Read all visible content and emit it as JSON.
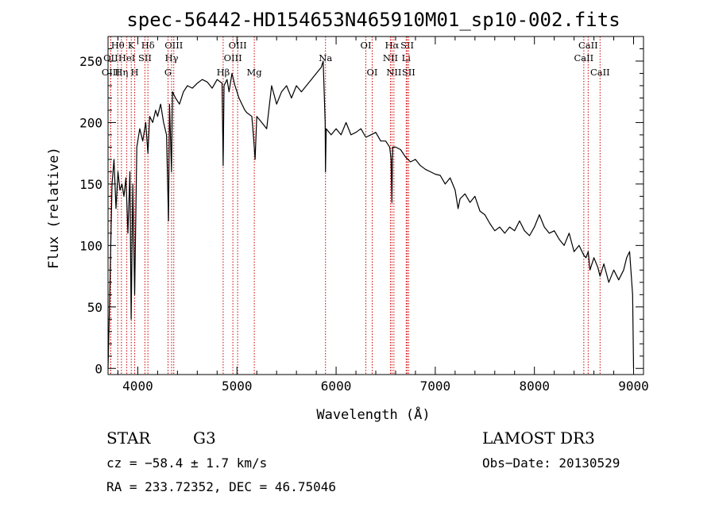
{
  "chart_data": {
    "type": "line",
    "title": "spec-56442-HD154653N465910M01_sp10-002.fits",
    "xlabel": "Wavelength (Å)",
    "ylabel": "Flux (relative)",
    "xlim": [
      3700,
      9100
    ],
    "ylim": [
      -5,
      270
    ],
    "xticks": [
      4000,
      5000,
      6000,
      7000,
      8000,
      9000
    ],
    "yticks": [
      0,
      50,
      100,
      150,
      200,
      250
    ],
    "grid": false,
    "series": [
      {
        "x": [
          3700,
          3720,
          3740,
          3760,
          3780,
          3800,
          3820,
          3840,
          3860,
          3880,
          3900,
          3920,
          3933,
          3950,
          3968,
          3990,
          4020,
          4050,
          4080,
          4102,
          4120,
          4150,
          4180,
          4200,
          4230,
          4260,
          4290,
          4310,
          4320,
          4340,
          4350,
          4380,
          4420,
          4460,
          4500,
          4550,
          4600,
          4650,
          4700,
          4750,
          4800,
          4850,
          4861,
          4870,
          4900,
          4920,
          4950,
          4980,
          5000,
          5020,
          5050,
          5080,
          5100,
          5150,
          5170,
          5183,
          5200,
          5250,
          5300,
          5350,
          5400,
          5450,
          5500,
          5550,
          5600,
          5650,
          5700,
          5750,
          5800,
          5850,
          5870,
          5890,
          5893,
          5900,
          5950,
          6000,
          6050,
          6100,
          6150,
          6200,
          6250,
          6300,
          6350,
          6400,
          6450,
          6500,
          6540,
          6555,
          6563,
          6570,
          6600,
          6650,
          6700,
          6750,
          6800,
          6850,
          6900,
          6950,
          7000,
          7050,
          7100,
          7150,
          7200,
          7230,
          7250,
          7300,
          7350,
          7400,
          7450,
          7500,
          7550,
          7600,
          7650,
          7700,
          7750,
          7800,
          7850,
          7900,
          7950,
          8000,
          8050,
          8100,
          8150,
          8200,
          8250,
          8300,
          8350,
          8400,
          8450,
          8498,
          8520,
          8542,
          8560,
          8600,
          8640,
          8662,
          8700,
          8750,
          8800,
          8850,
          8900,
          8930,
          8960,
          8990,
          9000
        ],
        "y": [
          0,
          70,
          150,
          170,
          130,
          160,
          145,
          150,
          140,
          155,
          110,
          160,
          40,
          150,
          60,
          180,
          195,
          185,
          200,
          175,
          205,
          200,
          210,
          205,
          215,
          200,
          190,
          120,
          215,
          160,
          225,
          220,
          215,
          225,
          230,
          228,
          232,
          235,
          233,
          228,
          235,
          232,
          165,
          230,
          235,
          225,
          240,
          230,
          225,
          220,
          215,
          210,
          208,
          205,
          185,
          170,
          205,
          200,
          195,
          230,
          215,
          225,
          230,
          220,
          230,
          225,
          230,
          235,
          240,
          245,
          250,
          200,
          160,
          195,
          190,
          195,
          190,
          200,
          190,
          192,
          195,
          188,
          190,
          192,
          185,
          185,
          180,
          170,
          135,
          180,
          180,
          178,
          172,
          168,
          170,
          165,
          162,
          160,
          158,
          157,
          150,
          155,
          145,
          130,
          138,
          142,
          135,
          140,
          128,
          125,
          118,
          112,
          115,
          110,
          115,
          112,
          120,
          112,
          108,
          115,
          125,
          115,
          110,
          112,
          105,
          100,
          110,
          95,
          100,
          92,
          90,
          95,
          80,
          90,
          82,
          75,
          85,
          70,
          80,
          72,
          80,
          90,
          95,
          60,
          0
        ]
      }
    ],
    "lines": [
      {
        "label": "Hθ",
        "x": 3798,
        "row": 0
      },
      {
        "label": "OII",
        "x": 3727,
        "row": 1
      },
      {
        "label": "OIII",
        "x": 3727,
        "row": 2
      },
      {
        "label": "K",
        "x": 3934,
        "row": 0
      },
      {
        "label": "HeI",
        "x": 3889,
        "row": 1
      },
      {
        "label": "Hη",
        "x": 3835,
        "row": 2
      },
      {
        "label": "H",
        "x": 3969,
        "row": 2
      },
      {
        "label": "Hδ",
        "x": 4102,
        "row": 0
      },
      {
        "label": "SII",
        "x": 4072,
        "row": 1
      },
      {
        "label": "OIII",
        "x": 4363,
        "row": 0
      },
      {
        "label": "Hγ",
        "x": 4341,
        "row": 1
      },
      {
        "label": "G",
        "x": 4305,
        "row": 2
      },
      {
        "label": "Hβ",
        "x": 4861,
        "row": 2
      },
      {
        "label": "OIII",
        "x": 5007,
        "row": 0
      },
      {
        "label": "OIII",
        "x": 4959,
        "row": 1
      },
      {
        "label": "Mg",
        "x": 5175,
        "row": 2
      },
      {
        "label": "Na",
        "x": 5893,
        "row": 1
      },
      {
        "label": "OI",
        "x": 6300,
        "row": 0
      },
      {
        "label": "OI",
        "x": 6364,
        "row": 2
      },
      {
        "label": "Hα",
        "x": 6563,
        "row": 0
      },
      {
        "label": "NII",
        "x": 6548,
        "row": 1
      },
      {
        "label": "NII",
        "x": 6583,
        "row": 2
      },
      {
        "label": "SII",
        "x": 6717,
        "row": 0
      },
      {
        "label": "Li",
        "x": 6707,
        "row": 1
      },
      {
        "label": "SII",
        "x": 6731,
        "row": 2
      },
      {
        "label": "CaII",
        "x": 8542,
        "row": 0
      },
      {
        "label": "CaII",
        "x": 8498,
        "row": 1
      },
      {
        "label": "CaII",
        "x": 8662,
        "row": 2
      }
    ]
  },
  "info": {
    "object_type": "STAR",
    "subclass": "G3",
    "survey": "LAMOST DR3",
    "cz": "cz = −58.4 ± 1.7 km/s",
    "obs_date": "Obs−Date: 20130529",
    "coords": "RA = 233.72352, DEC =  46.75046"
  }
}
